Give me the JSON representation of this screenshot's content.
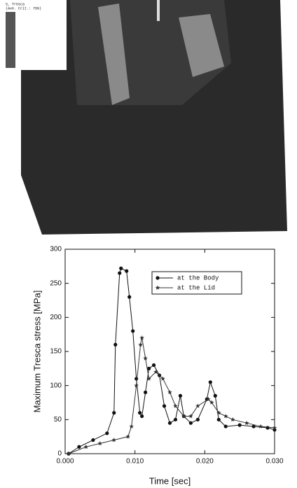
{
  "image": {
    "legend_title": "S, Tresca",
    "legend_subtitle": "(Ave. Crit.: 75%)"
  },
  "chart_data": {
    "type": "line",
    "x_label": "Time [sec]",
    "y_label": "Maximum Tresca stress [MPa]",
    "xlim": [
      0,
      0.03
    ],
    "ylim": [
      0,
      300
    ],
    "xticks": [
      {
        "value": 0,
        "label": "0.000"
      },
      {
        "value": 0.01,
        "label": "0.010"
      },
      {
        "value": 0.02,
        "label": "0.020"
      },
      {
        "value": 0.03,
        "label": "0.030"
      }
    ],
    "yticks": [
      0,
      50,
      100,
      150,
      200,
      250,
      300
    ],
    "grid": false,
    "legend": "upper right",
    "series": [
      {
        "name": "at the Body",
        "color": "#111111",
        "marker": "circle",
        "x": [
          0.0005,
          0.002,
          0.004,
          0.006,
          0.007,
          0.0072,
          0.0078,
          0.008,
          0.0088,
          0.0092,
          0.0097,
          0.0102,
          0.0107,
          0.011,
          0.0115,
          0.012,
          0.0127,
          0.0135,
          0.0142,
          0.015,
          0.0158,
          0.0165,
          0.017,
          0.018,
          0.019,
          0.0203,
          0.0208,
          0.0215,
          0.022,
          0.023,
          0.025,
          0.027,
          0.029,
          0.03
        ],
        "values": [
          0,
          10,
          20,
          30,
          60,
          160,
          265,
          272,
          268,
          230,
          180,
          110,
          60,
          55,
          90,
          125,
          130,
          115,
          70,
          45,
          50,
          85,
          55,
          45,
          50,
          80,
          105,
          85,
          50,
          40,
          42,
          40,
          38,
          35
        ]
      },
      {
        "name": "at the Lid",
        "color": "#333333",
        "marker": "star",
        "x": [
          0.0005,
          0.003,
          0.005,
          0.007,
          0.009,
          0.0095,
          0.0102,
          0.0108,
          0.011,
          0.0115,
          0.012,
          0.013,
          0.014,
          0.015,
          0.0158,
          0.017,
          0.018,
          0.019,
          0.0205,
          0.021,
          0.022,
          0.023,
          0.024,
          0.026,
          0.028,
          0.03
        ],
        "values": [
          0,
          10,
          15,
          20,
          25,
          40,
          100,
          160,
          170,
          140,
          110,
          120,
          110,
          90,
          70,
          55,
          55,
          70,
          80,
          75,
          60,
          55,
          50,
          45,
          40,
          38
        ]
      }
    ]
  }
}
